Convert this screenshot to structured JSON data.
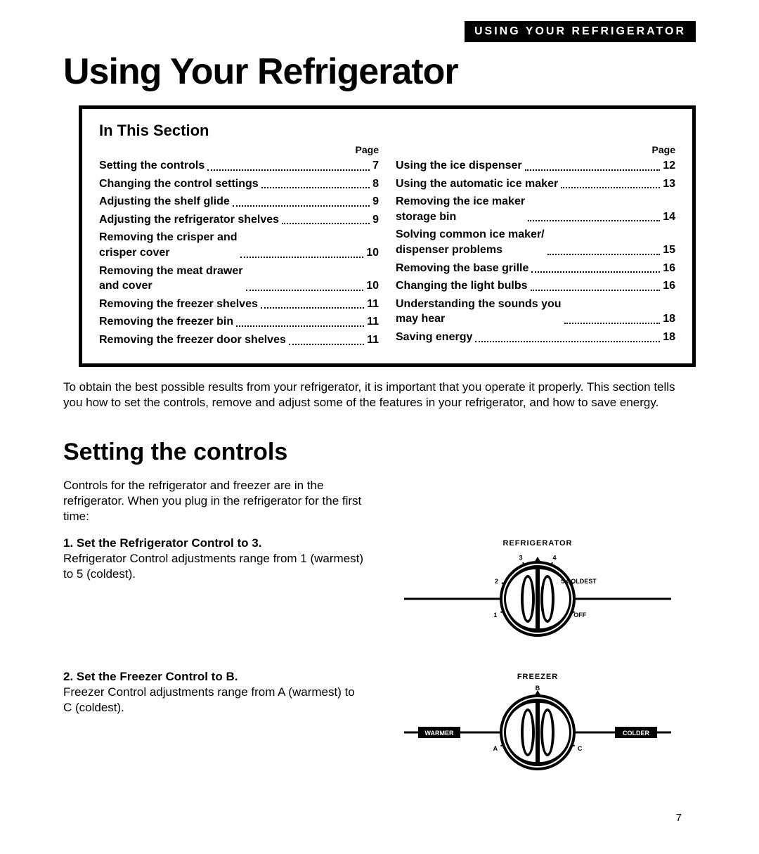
{
  "header_bar": "USING YOUR REFRIGERATOR",
  "main_title": "Using Your Refrigerator",
  "toc": {
    "heading": "In This Section",
    "page_label": "Page",
    "left": [
      {
        "label": "Setting the controls",
        "page": "7"
      },
      {
        "label": "Changing the control settings",
        "page": "8"
      },
      {
        "label": "Adjusting the shelf glide",
        "page": "9"
      },
      {
        "label": "Adjusting the refrigerator shelves",
        "page": "9"
      },
      {
        "label": "Removing the crisper and\ncrisper cover",
        "page": "10"
      },
      {
        "label": "Removing the meat drawer\nand cover",
        "page": "10"
      },
      {
        "label": "Removing the freezer shelves",
        "page": "11"
      },
      {
        "label": "Removing the freezer bin",
        "page": "11"
      },
      {
        "label": "Removing the freezer door shelves",
        "page": "11"
      }
    ],
    "right": [
      {
        "label": "Using the ice dispenser",
        "page": "12"
      },
      {
        "label": "Using the automatic ice maker",
        "page": "13"
      },
      {
        "label": "Removing the ice maker\nstorage bin",
        "page": "14"
      },
      {
        "label": "Solving common ice maker/\ndispenser problems",
        "page": "15"
      },
      {
        "label": "Removing the base grille",
        "page": "16"
      },
      {
        "label": "Changing the light bulbs",
        "page": "16"
      },
      {
        "label": "Understanding the sounds you\nmay hear",
        "page": "18"
      },
      {
        "label": "Saving energy",
        "page": "18"
      }
    ]
  },
  "intro": "To obtain the best possible results from your refrigerator, it is important that you operate it properly. This section tells you how to set the controls, remove and adjust some of the features in your refrigerator, and how to save energy.",
  "sub_title": "Setting the controls",
  "controls_intro": "Controls for the refrigerator and freezer are in the refrigerator. When you plug in the refrigerator for the first time:",
  "steps": [
    {
      "num": "1.",
      "head": "Set the Refrigerator Control to 3.",
      "body": "Refrigerator Control adjustments range from 1 (warmest) to 5 (coldest).",
      "dial": {
        "title": "REFRIGERATOR",
        "ticks": [
          "1",
          "2",
          "3",
          "4",
          "5 COLDEST",
          "OFF"
        ],
        "left_label": "",
        "right_label": ""
      }
    },
    {
      "num": "2.",
      "head": "Set the Freezer Control to B.",
      "body": "Freezer Control adjustments range from A (warmest) to C (coldest).",
      "dial": {
        "title": "FREEZER",
        "ticks": [
          "A",
          "B",
          "C"
        ],
        "left_label": "WARMER",
        "right_label": "COLDER"
      }
    }
  ],
  "page_number": "7",
  "colors": {
    "text": "#000000",
    "bg": "#ffffff",
    "bar_bg": "#000000",
    "bar_fg": "#ffffff",
    "border": "#000000"
  }
}
